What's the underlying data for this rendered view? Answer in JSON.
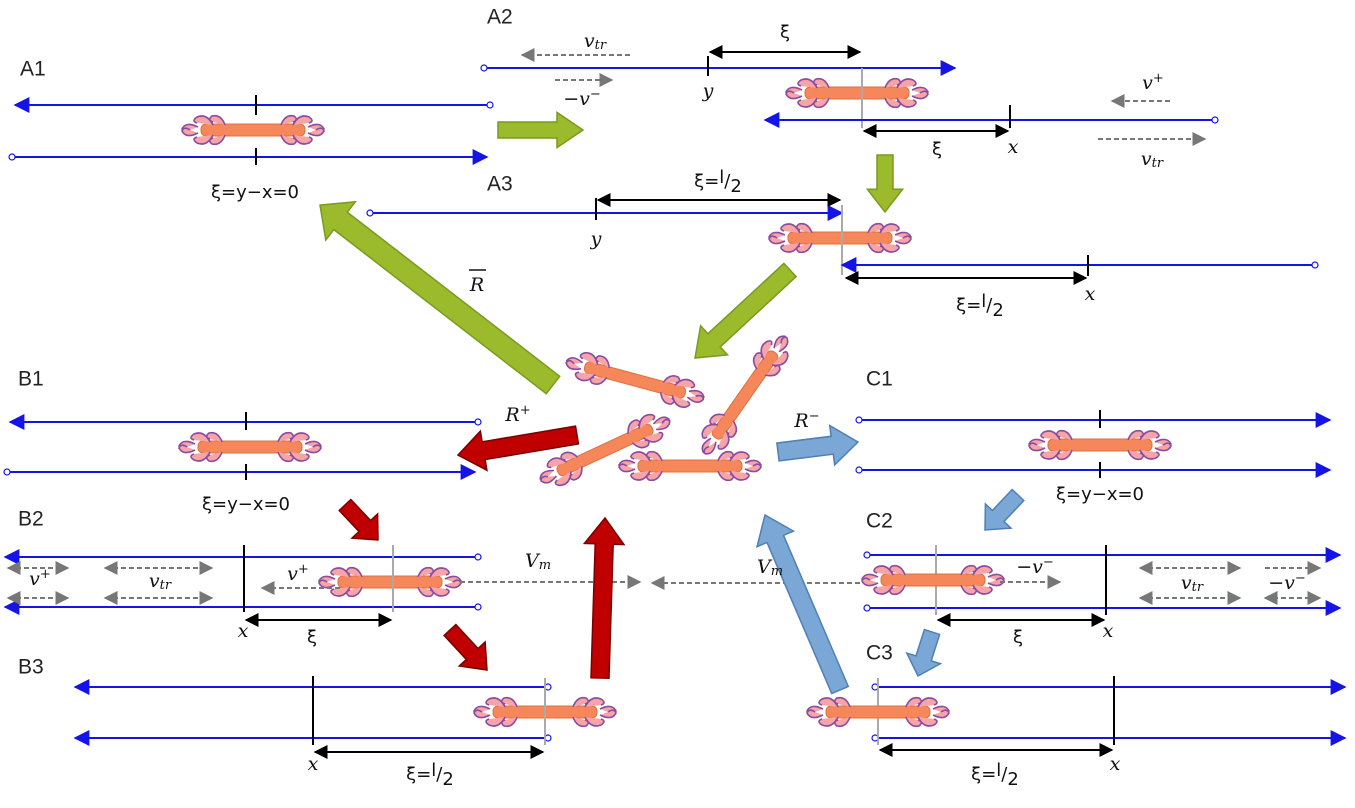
{
  "panels": [
    "A1",
    "A2",
    "A3",
    "B1",
    "B2",
    "B3",
    "C1",
    "C2",
    "C3"
  ],
  "symbols": {
    "xi": "ξ",
    "x": "x",
    "y": "y",
    "eq_zero": "ξ=y−x=0",
    "eq_half": "ξ=",
    "l": "l",
    "slash": "/",
    "two": "2",
    "v": "v",
    "tr": "tr",
    "minus": "−",
    "plus": "+",
    "R": "R",
    "V": "V",
    "m": "m"
  }
}
